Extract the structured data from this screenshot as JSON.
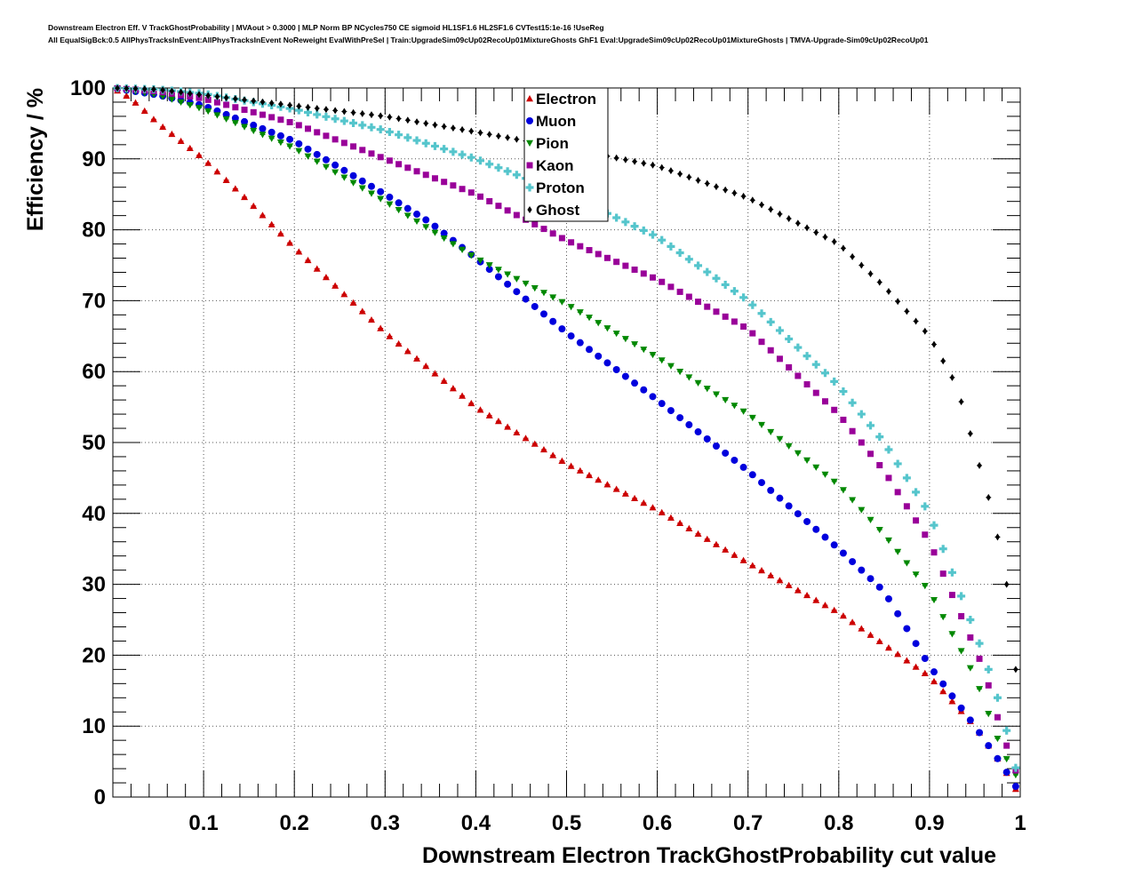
{
  "title_line_1": "Downstream Electron Eff. V TrackGhostProbability | MVAout > 0.3000 | MLP Norm BP NCycles750 CE sigmoid HL1SF1.6 HL2SF1.6 CVTest15:1e-16 !UseReg",
  "title_line_2": "All EqualSigBck:0.5 AllPhysTracksInEvent:AllPhysTracksInEvent NoReweight EvalWithPreSel | Train:UpgradeSim09cUp02RecoUp01MixtureGhosts GhF1 Eval:UpgradeSim09cUp02RecoUp01MixtureGhosts | TMVA-Upgrade-Sim09cUp02RecoUp01",
  "chart_data": {
    "type": "scatter",
    "xlabel": "Downstream Electron TrackGhostProbability cut value",
    "ylabel": "Efficiency / %",
    "xlim": [
      0,
      1
    ],
    "ylim": [
      0,
      100
    ],
    "x_tick_labels": [
      "0.1",
      "0.2",
      "0.3",
      "0.4",
      "0.5",
      "0.6",
      "0.7",
      "0.8",
      "0.9",
      "1"
    ],
    "y_tick_labels": [
      "0",
      "10",
      "20",
      "30",
      "40",
      "50",
      "60",
      "70",
      "80",
      "90",
      "100"
    ],
    "legend_position": "top-center",
    "x_start": 0.005,
    "x_step": 0.01,
    "n_points": 100,
    "series": [
      {
        "name": "Electron",
        "color": "#cc0000",
        "marker": "triangle-up",
        "anchors": [
          [
            0,
            100
          ],
          [
            0.02,
            98.5
          ],
          [
            0.05,
            95
          ],
          [
            0.1,
            90
          ],
          [
            0.15,
            84
          ],
          [
            0.2,
            77.5
          ],
          [
            0.3,
            65.5
          ],
          [
            0.4,
            55
          ],
          [
            0.5,
            47
          ],
          [
            0.6,
            40.5
          ],
          [
            0.7,
            33
          ],
          [
            0.8,
            26
          ],
          [
            0.9,
            17
          ],
          [
            0.95,
            10
          ],
          [
            0.98,
            4.5
          ],
          [
            1,
            0
          ]
        ]
      },
      {
        "name": "Muon",
        "color": "#0000dd",
        "marker": "circle",
        "anchors": [
          [
            0,
            100
          ],
          [
            0.05,
            99
          ],
          [
            0.1,
            97.5
          ],
          [
            0.2,
            92.5
          ],
          [
            0.3,
            85
          ],
          [
            0.35,
            81
          ],
          [
            0.4,
            76
          ],
          [
            0.5,
            65.5
          ],
          [
            0.6,
            56
          ],
          [
            0.7,
            46
          ],
          [
            0.8,
            35
          ],
          [
            0.85,
            29
          ],
          [
            0.9,
            18.5
          ],
          [
            0.95,
            10
          ],
          [
            0.98,
            4.5
          ],
          [
            1,
            0.5
          ]
        ]
      },
      {
        "name": "Pion",
        "color": "#008800",
        "marker": "triangle-down",
        "anchors": [
          [
            0,
            100
          ],
          [
            0.05,
            99
          ],
          [
            0.1,
            97
          ],
          [
            0.2,
            91.5
          ],
          [
            0.3,
            84
          ],
          [
            0.4,
            76
          ],
          [
            0.5,
            69.5
          ],
          [
            0.6,
            62
          ],
          [
            0.7,
            54
          ],
          [
            0.8,
            44
          ],
          [
            0.85,
            37
          ],
          [
            0.9,
            29
          ],
          [
            0.95,
            17
          ],
          [
            0.98,
            6.5
          ],
          [
            1,
            2
          ]
        ]
      },
      {
        "name": "Kaon",
        "color": "#990099",
        "marker": "square",
        "anchors": [
          [
            0,
            100
          ],
          [
            0.05,
            99.5
          ],
          [
            0.1,
            98.5
          ],
          [
            0.2,
            95
          ],
          [
            0.3,
            90
          ],
          [
            0.4,
            85
          ],
          [
            0.5,
            78.5
          ],
          [
            0.6,
            73
          ],
          [
            0.7,
            66
          ],
          [
            0.8,
            54
          ],
          [
            0.85,
            46
          ],
          [
            0.9,
            36
          ],
          [
            0.93,
            27
          ],
          [
            0.96,
            18
          ],
          [
            0.98,
            9
          ],
          [
            1,
            2
          ]
        ]
      },
      {
        "name": "Proton",
        "color": "#55c5cc",
        "marker": "cross",
        "anchors": [
          [
            0,
            100
          ],
          [
            0.05,
            99.8
          ],
          [
            0.1,
            99.2
          ],
          [
            0.2,
            97
          ],
          [
            0.3,
            94
          ],
          [
            0.4,
            90
          ],
          [
            0.5,
            85
          ],
          [
            0.6,
            79
          ],
          [
            0.7,
            70
          ],
          [
            0.8,
            58
          ],
          [
            0.85,
            50
          ],
          [
            0.9,
            40
          ],
          [
            0.93,
            30
          ],
          [
            0.96,
            20
          ],
          [
            0.98,
            12
          ],
          [
            1,
            1.5
          ]
        ]
      },
      {
        "name": "Ghost",
        "color": "#000000",
        "marker": "diamond",
        "anchors": [
          [
            0,
            100
          ],
          [
            0.05,
            99.8
          ],
          [
            0.1,
            99
          ],
          [
            0.2,
            97.5
          ],
          [
            0.3,
            96
          ],
          [
            0.4,
            93.8
          ],
          [
            0.5,
            91.5
          ],
          [
            0.6,
            89
          ],
          [
            0.7,
            84.5
          ],
          [
            0.8,
            78
          ],
          [
            0.85,
            72
          ],
          [
            0.9,
            65
          ],
          [
            0.93,
            58
          ],
          [
            0.95,
            49
          ],
          [
            0.97,
            40
          ],
          [
            0.985,
            30
          ],
          [
            1,
            12
          ]
        ]
      }
    ]
  }
}
